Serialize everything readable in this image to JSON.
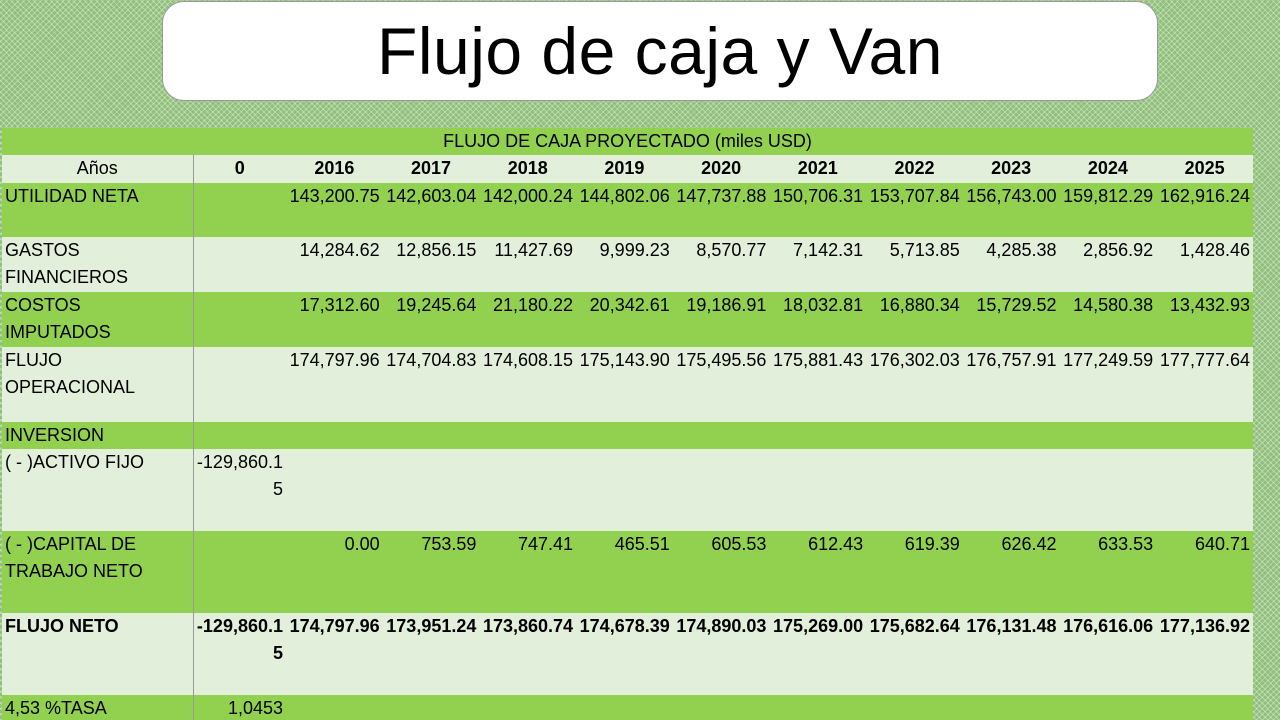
{
  "title": "Flujo de caja y Van",
  "table": {
    "heading": "FLUJO DE CAJA PROYECTADO  (miles USD)",
    "columns": [
      "Años",
      "0",
      "2016",
      "2017",
      "2018",
      "2019",
      "2020",
      "2021",
      "2022",
      "2023",
      "2024",
      "2025"
    ],
    "rows": [
      {
        "label": "UTILIDAD NETA",
        "values": [
          "",
          "143,200.75",
          "142,603.04",
          "142,000.24",
          "144,802.06",
          "147,737.88",
          "150,706.31",
          "153,707.84",
          "156,743.00",
          "159,812.29",
          "162,916.24"
        ]
      },
      {
        "label": "GASTOS FINANCIEROS",
        "values": [
          "",
          "14,284.62",
          "12,856.15",
          "11,427.69",
          "9,999.23",
          "8,570.77",
          "7,142.31",
          "5,713.85",
          "4,285.38",
          "2,856.92",
          "1,428.46"
        ]
      },
      {
        "label": "COSTOS IMPUTADOS",
        "values": [
          "",
          "17,312.60",
          "19,245.64",
          "21,180.22",
          "20,342.61",
          "19,186.91",
          "18,032.81",
          "16,880.34",
          "15,729.52",
          "14,580.38",
          "13,432.93"
        ]
      },
      {
        "label": "FLUJO OPERACIONAL",
        "values": [
          "",
          "174,797.96",
          "174,704.83",
          "174,608.15",
          "175,143.90",
          "175,495.56",
          "175,881.43",
          "176,302.03",
          "176,757.91",
          "177,249.59",
          "177,777.64"
        ]
      },
      {
        "label": "INVERSION",
        "values": [
          "",
          "",
          "",
          "",
          "",
          "",
          "",
          "",
          "",
          "",
          ""
        ]
      },
      {
        "label": "( - )ACTIVO FIJO",
        "values": [
          "-129,860.15",
          "",
          "",
          "",
          "",
          "",
          "",
          "",
          "",
          "",
          ""
        ]
      },
      {
        "label": "( - )CAPITAL DE TRABAJO NETO",
        "values": [
          "",
          "0.00",
          "753.59",
          "747.41",
          "465.51",
          "605.53",
          "612.43",
          "619.39",
          "626.42",
          "633.53",
          "640.71"
        ]
      },
      {
        "label": "FLUJO NETO",
        "values": [
          "-129,860.15",
          "174,797.96",
          "173,951.24",
          "173,860.74",
          "174,678.39",
          "174,890.03",
          "175,269.00",
          "175,682.64",
          "176,131.48",
          "176,616.06",
          "177,136.92"
        ]
      },
      {
        "label": "4,53 %TASA",
        "values": [
          "1,0453",
          "",
          "",
          "",
          "",
          "",
          "",
          "",
          "",
          "",
          ""
        ]
      }
    ]
  }
}
